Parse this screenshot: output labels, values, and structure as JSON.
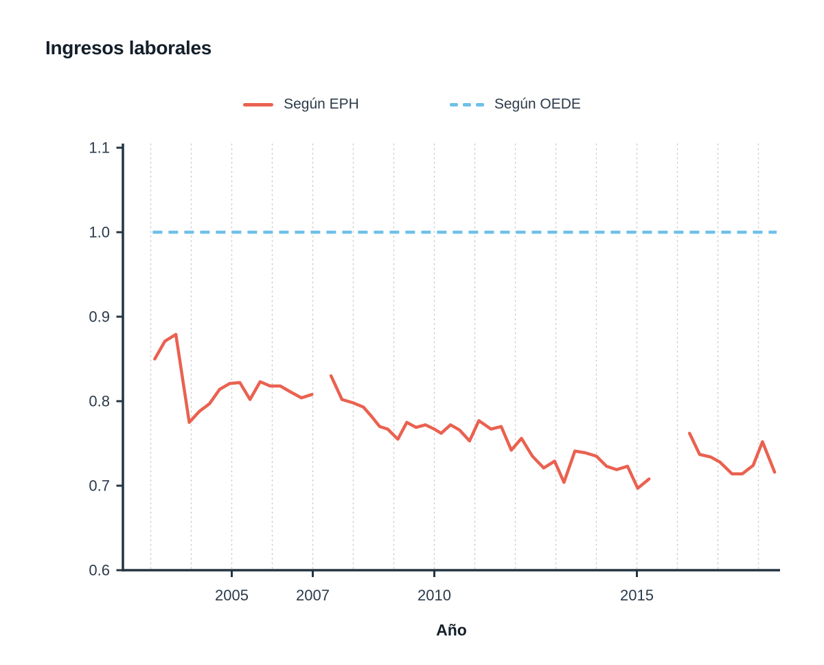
{
  "title": "Ingresos laborales",
  "legend": {
    "items": [
      {
        "id": "eph",
        "label": "Según EPH"
      },
      {
        "id": "oede",
        "label": "Según OEDE"
      }
    ]
  },
  "colors": {
    "eph": "#ea6150",
    "oede": "#6ec0e8",
    "axis": "#243442",
    "tick_text": "#2b3a49",
    "title_text": "#141f2a",
    "grid": "#c9c9c9",
    "background": "#ffffff"
  },
  "chart_data": {
    "type": "line",
    "title": "Ingresos laborales",
    "xlabel": "Año",
    "ylabel": "",
    "xlim": [
      2002.3,
      2018.5
    ],
    "ylim": [
      0.6,
      1.1
    ],
    "grid": "vertical dotted yearly gridlines",
    "legend_position": "top-center",
    "grid_years": [
      2003,
      2004,
      2005,
      2006,
      2007,
      2008,
      2009,
      2010,
      2011,
      2012,
      2013,
      2014,
      2015,
      2016,
      2017,
      2018
    ],
    "yticks": [
      {
        "value": 0.6,
        "label": "0.6"
      },
      {
        "value": 0.7,
        "label": "0.7"
      },
      {
        "value": 0.8,
        "label": "0.8"
      },
      {
        "value": 0.9,
        "label": "0.9"
      },
      {
        "value": 1.0,
        "label": "1.0"
      },
      {
        "value": 1.1,
        "label": "1.1"
      }
    ],
    "xticks": [
      {
        "value": 2005,
        "label": "2005"
      },
      {
        "value": 2007,
        "label": "2007"
      },
      {
        "value": 2010,
        "label": "2010"
      },
      {
        "value": 2015,
        "label": "2015"
      }
    ],
    "series": [
      {
        "name": "Según EPH",
        "style": "solid",
        "color": "#ea6150",
        "segments": [
          [
            [
              2003.1,
              0.85
            ],
            [
              2003.35,
              0.871
            ],
            [
              2003.62,
              0.879
            ],
            [
              2003.95,
              0.775
            ],
            [
              2004.2,
              0.788
            ],
            [
              2004.45,
              0.797
            ],
            [
              2004.7,
              0.814
            ],
            [
              2004.95,
              0.821
            ],
            [
              2005.2,
              0.822
            ],
            [
              2005.45,
              0.802
            ],
            [
              2005.7,
              0.823
            ],
            [
              2005.95,
              0.818
            ],
            [
              2006.2,
              0.818
            ],
            [
              2006.45,
              0.811
            ],
            [
              2006.72,
              0.804
            ],
            [
              2006.98,
              0.808
            ]
          ],
          [
            [
              2007.45,
              0.83
            ],
            [
              2007.72,
              0.802
            ],
            [
              2008.0,
              0.798
            ],
            [
              2008.25,
              0.793
            ],
            [
              2008.45,
              0.782
            ],
            [
              2008.65,
              0.77
            ],
            [
              2008.85,
              0.767
            ],
            [
              2009.1,
              0.755
            ],
            [
              2009.32,
              0.775
            ],
            [
              2009.55,
              0.769
            ],
            [
              2009.78,
              0.772
            ],
            [
              2010.0,
              0.767
            ],
            [
              2010.17,
              0.762
            ],
            [
              2010.4,
              0.772
            ],
            [
              2010.62,
              0.766
            ],
            [
              2010.87,
              0.753
            ],
            [
              2011.1,
              0.777
            ],
            [
              2011.4,
              0.767
            ],
            [
              2011.65,
              0.77
            ],
            [
              2011.9,
              0.742
            ],
            [
              2012.15,
              0.756
            ],
            [
              2012.42,
              0.735
            ],
            [
              2012.7,
              0.721
            ],
            [
              2012.97,
              0.729
            ],
            [
              2013.2,
              0.704
            ],
            [
              2013.47,
              0.741
            ],
            [
              2013.72,
              0.739
            ],
            [
              2014.0,
              0.735
            ],
            [
              2014.25,
              0.723
            ],
            [
              2014.5,
              0.719
            ],
            [
              2014.77,
              0.723
            ],
            [
              2015.02,
              0.697
            ],
            [
              2015.3,
              0.708
            ]
          ],
          [
            [
              2016.3,
              0.762
            ],
            [
              2016.55,
              0.737
            ],
            [
              2016.82,
              0.734
            ],
            [
              2017.05,
              0.728
            ],
            [
              2017.35,
              0.714
            ],
            [
              2017.6,
              0.714
            ],
            [
              2017.87,
              0.724
            ],
            [
              2018.1,
              0.752
            ],
            [
              2018.4,
              0.716
            ]
          ]
        ]
      },
      {
        "name": "Según OEDE",
        "style": "dashed",
        "color": "#6ec0e8",
        "segments": [
          [
            [
              2003.05,
              1.0
            ],
            [
              2018.45,
              1.0
            ]
          ]
        ]
      }
    ]
  }
}
